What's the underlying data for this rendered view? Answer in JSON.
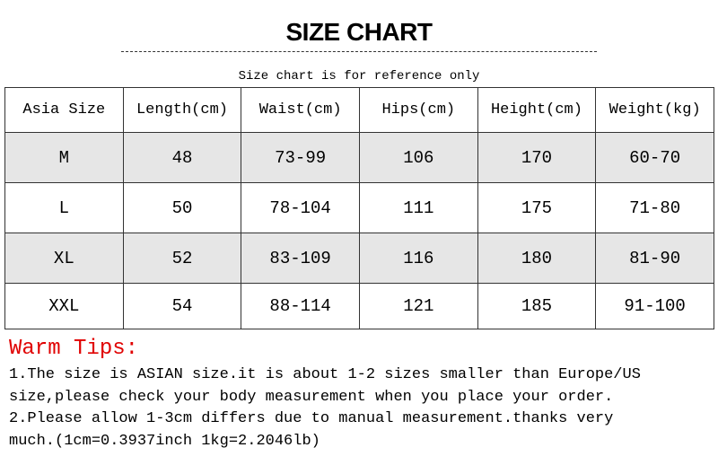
{
  "title": "SIZE CHART",
  "subtitle": "Size chart is for reference only",
  "table": {
    "headers": [
      "Asia Size",
      "Length(cm)",
      "Waist(cm)",
      "Hips(cm)",
      "Height(cm)",
      "Weight(kg)"
    ],
    "rows": [
      [
        "M",
        "48",
        "73-99",
        "106",
        "170",
        "60-70"
      ],
      [
        "L",
        "50",
        "78-104",
        "111",
        "175",
        "71-80"
      ],
      [
        "XL",
        "52",
        "83-109",
        "116",
        "180",
        "81-90"
      ],
      [
        "XXL",
        "54",
        "88-114",
        "121",
        "185",
        "91-100"
      ]
    ],
    "shaded_row_color": "#e6e6e6"
  },
  "tips": {
    "title": "Warm Tips:",
    "title_color": "#e00000",
    "lines": [
      "1.The size is ASIAN size.it is about 1-2 sizes smaller than Europe/US",
      "size,please check your body measurement when you place your order.",
      "2.Please allow 1-3cm differs due to manual measurement.thanks very",
      "much.(1cm=0.3937inch 1kg=2.2046lb)"
    ]
  }
}
